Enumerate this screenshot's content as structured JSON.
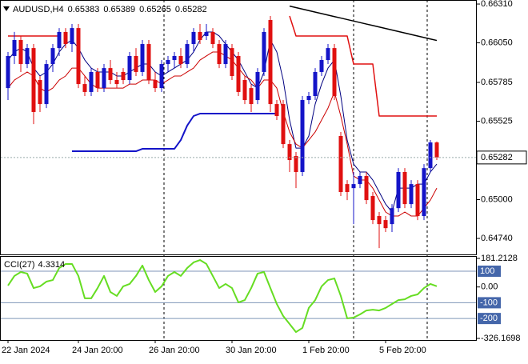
{
  "chart_data": [
    {
      "type": "candlestick",
      "title": "AUDUSD,H4",
      "categories": [
        "22 Jan 2024",
        null,
        null,
        null,
        null,
        null,
        null,
        null,
        null,
        null,
        null,
        "24 Jan 20:00",
        null,
        null,
        null,
        null,
        null,
        null,
        null,
        null,
        null,
        null,
        null,
        "26 Jan 20:00",
        null,
        null,
        null,
        null,
        null,
        null,
        null,
        null,
        null,
        null,
        null,
        "30 Jan 20:00",
        null,
        null,
        null,
        null,
        null,
        null,
        null,
        null,
        null,
        null,
        null,
        "1 Feb 20:00",
        null,
        null,
        null,
        null,
        null,
        null,
        null,
        null,
        null,
        null,
        null,
        "5 Feb 20:00",
        null,
        null,
        null,
        null,
        null,
        null,
        null,
        null
      ],
      "open": [
        0.65747,
        0.65962,
        0.66069,
        0.65908,
        0.66015,
        0.65801,
        0.6564,
        0.65908,
        0.66015,
        0.66123,
        0.66042,
        0.66149,
        0.65774,
        0.65721,
        0.65855,
        0.65747,
        0.65881,
        0.65801,
        0.65855,
        0.65801,
        0.65962,
        0.65855,
        0.66042,
        0.65801,
        0.65747,
        0.65908,
        0.65935,
        0.65962,
        0.65908,
        0.66042,
        0.66123,
        0.66096,
        0.66123,
        0.66042,
        0.65908,
        0.66015,
        0.65962,
        0.65801,
        0.65747,
        0.65667,
        0.65855,
        0.66203,
        0.6564,
        0.6564,
        0.65372,
        0.65292,
        0.65185,
        0.65667,
        0.65694,
        0.65855,
        0.65935,
        0.66015,
        0.65426,
        0.65104,
        0.65077,
        0.65104,
        0.65158,
        0.65024,
        0.6489,
        0.64863,
        0.64836,
        0.64943,
        0.65185,
        0.6497,
        0.65104,
        0.6489,
        0.65211,
        0.65383
      ],
      "high": [
        0.65989,
        0.66123,
        0.66096,
        0.66042,
        0.66042,
        0.65828,
        0.65935,
        0.66042,
        0.66149,
        0.66149,
        0.66176,
        0.66176,
        0.65828,
        0.65881,
        0.65881,
        0.65908,
        0.65935,
        0.65855,
        0.65881,
        0.65989,
        0.66015,
        0.66069,
        0.66069,
        0.65855,
        0.65935,
        0.65962,
        0.65989,
        0.66015,
        0.66069,
        0.66149,
        0.66176,
        0.66176,
        0.66149,
        0.66069,
        0.66069,
        0.66042,
        0.65989,
        0.65828,
        0.65774,
        0.65881,
        0.66149,
        0.6623,
        0.65667,
        0.65667,
        0.65399,
        0.65319,
        0.65694,
        0.65721,
        0.65881,
        0.65962,
        0.66042,
        0.66042,
        0.65453,
        0.65131,
        0.65185,
        0.65185,
        0.65185,
        0.65051,
        0.64917,
        0.6489,
        0.6497,
        0.65211,
        0.65211,
        0.65131,
        0.65131,
        0.65238,
        0.65399,
        0.65389
      ],
      "low": [
        0.65667,
        0.65908,
        0.65855,
        0.65881,
        0.65506,
        0.65587,
        0.65613,
        0.65855,
        0.65962,
        0.66015,
        0.65989,
        0.65747,
        0.65694,
        0.65694,
        0.65721,
        0.65721,
        0.65774,
        0.65747,
        0.65774,
        0.65774,
        0.65828,
        0.65828,
        0.65774,
        0.65721,
        0.65721,
        0.65855,
        0.65881,
        0.65881,
        0.65881,
        0.65989,
        0.66042,
        0.66069,
        0.66015,
        0.65881,
        0.65881,
        0.65801,
        0.65694,
        0.6564,
        0.65587,
        0.6564,
        0.65828,
        0.65587,
        0.65533,
        0.65345,
        0.65185,
        0.65077,
        0.65158,
        0.6564,
        0.65667,
        0.65828,
        0.65908,
        0.65667,
        0.65024,
        0.64997,
        0.64836,
        0.65077,
        0.6497,
        0.64836,
        0.64675,
        0.64783,
        0.64783,
        0.64917,
        0.64943,
        0.64943,
        0.64863,
        0.64863,
        0.65185,
        0.65265
      ],
      "close": [
        0.65962,
        0.66069,
        0.65908,
        0.66015,
        0.65587,
        0.6564,
        0.65908,
        0.66015,
        0.66123,
        0.66042,
        0.66149,
        0.65774,
        0.65721,
        0.65855,
        0.65747,
        0.65881,
        0.65801,
        0.65774,
        0.65801,
        0.65962,
        0.65855,
        0.66042,
        0.65801,
        0.65747,
        0.65908,
        0.65935,
        0.65962,
        0.65908,
        0.66042,
        0.66123,
        0.66069,
        0.66123,
        0.66042,
        0.65908,
        0.66042,
        0.65828,
        0.65721,
        0.65667,
        0.6564,
        0.65855,
        0.66123,
        0.6564,
        0.6556,
        0.65372,
        0.65265,
        0.65185,
        0.65667,
        0.65694,
        0.65855,
        0.65935,
        0.66015,
        0.65694,
        0.65051,
        0.65051,
        0.65104,
        0.65158,
        0.64997,
        0.64863,
        0.64836,
        0.64809,
        0.64943,
        0.65185,
        0.6497,
        0.65104,
        0.6489,
        0.65211,
        0.65383,
        0.65282
      ],
      "up_color": "#1414c8",
      "down_color": "#e01010",
      "ylim": [
        0.64633,
        0.66337
      ],
      "yticks": [
        {
          "value": 0.6631,
          "label": "0.66310"
        },
        {
          "value": 0.6605,
          "label": "0.66050"
        },
        0.65785,
        0.65525,
        {
          "value": 0.65,
          "label": "0.65000"
        },
        {
          "value": 0.6474,
          "label": "0.64740"
        }
      ],
      "grid": false,
      "overlays": [
        {
          "color": "#000000",
          "width": 1.5,
          "values": [
            null,
            null,
            null,
            null,
            null,
            null,
            null,
            null,
            null,
            null,
            null,
            null,
            null,
            null,
            null,
            null,
            null,
            null,
            null,
            null,
            null,
            null,
            null,
            null,
            null,
            null,
            null,
            null,
            null,
            null,
            null,
            null,
            null,
            null,
            null,
            null,
            null,
            null,
            null,
            null,
            null,
            null,
            null,
            null,
            0.66296,
            0.66286,
            0.66276,
            0.66266,
            0.66256,
            0.66246,
            0.66236,
            0.66226,
            0.66216,
            0.66206,
            0.66196,
            0.66186,
            0.66176,
            0.66166,
            0.66156,
            0.66146,
            0.66136,
            0.66126,
            0.66116,
            0.66106,
            0.66096,
            0.66086,
            0.66076,
            0.66066
          ]
        },
        {
          "color": "#e01010",
          "width": 1.5,
          "values": [
            0.66096,
            0.66096,
            0.66096,
            0.66096,
            0.66096,
            0.66096,
            0.66096,
            0.66096,
            0.66096,
            null,
            null,
            null,
            null,
            null,
            null,
            null,
            null,
            null,
            null,
            null,
            null,
            null,
            null,
            null,
            null,
            null,
            null,
            null,
            null,
            null,
            null,
            null,
            null,
            null,
            null,
            null,
            null,
            null,
            null,
            null,
            null,
            null,
            null,
            null,
            0.6623,
            0.66096,
            0.66096,
            0.66096,
            0.66096,
            0.66096,
            0.66096,
            0.66096,
            0.66096,
            0.66096,
            0.65908,
            0.65908,
            0.65908,
            0.65908,
            0.6556,
            0.6556,
            0.6556,
            0.6556,
            0.6556,
            0.6556,
            0.6556,
            0.6556,
            0.6556,
            0.6556
          ]
        },
        {
          "color": "#1414c8",
          "width": 2,
          "values": [
            null,
            null,
            null,
            null,
            null,
            null,
            null,
            null,
            null,
            null,
            0.65324,
            0.65324,
            0.65324,
            0.65324,
            0.65324,
            0.65324,
            0.65324,
            0.65324,
            0.65324,
            0.65324,
            0.65324,
            0.6534,
            0.6534,
            0.6534,
            0.6534,
            0.6534,
            0.6534,
            0.65399,
            0.65496,
            0.6556,
            0.65576,
            0.65576,
            0.65576,
            0.65576,
            0.65576,
            0.65576,
            0.65576,
            0.65576,
            0.65576,
            0.65576,
            0.65576,
            0.65576,
            0.65576,
            null,
            null,
            null,
            null,
            null,
            null,
            null,
            null,
            null,
            null,
            null,
            null,
            null,
            null,
            null,
            null,
            null,
            null,
            null,
            null,
            null,
            null,
            null,
            null,
            null
          ]
        },
        {
          "color": "#000080",
          "width": 1,
          "values": [
            0.65935,
            0.65989,
            0.66015,
            0.65989,
            0.65881,
            0.65828,
            0.65855,
            0.65908,
            0.65989,
            0.66042,
            0.66069,
            0.66015,
            0.65935,
            0.65881,
            0.65855,
            0.65855,
            0.65855,
            0.65828,
            0.65828,
            0.65855,
            0.65881,
            0.65908,
            0.65908,
            0.65855,
            0.65828,
            0.65855,
            0.65881,
            0.65908,
            0.65935,
            0.65989,
            0.66069,
            0.66123,
            0.66123,
            0.66096,
            0.66042,
            0.65989,
            0.65935,
            0.65855,
            0.65774,
            0.65747,
            0.65855,
            0.66069,
            0.65989,
            0.65801,
            0.65533,
            0.65345,
            0.65345,
            0.65426,
            0.6564,
            0.65774,
            0.65881,
            0.65935,
            0.65694,
            0.65399,
            0.65238,
            0.65185,
            0.65185,
            0.65131,
            0.65051,
            0.6497,
            0.64917,
            0.65077,
            0.65077,
            0.65077,
            0.65104,
            0.65104,
            0.65185,
            0.65238
          ]
        },
        {
          "color": "#cc0000",
          "width": 1,
          "values": [
            0.65747,
            0.65801,
            0.65828,
            0.65855,
            0.65828,
            0.65747,
            0.65721,
            0.65747,
            0.65801,
            0.65828,
            0.65881,
            0.65881,
            0.65828,
            0.65774,
            0.65747,
            0.65747,
            0.65747,
            0.65747,
            0.65747,
            0.65774,
            0.65774,
            0.65801,
            0.65801,
            0.65801,
            0.65774,
            0.65801,
            0.65828,
            0.65828,
            0.65855,
            0.65881,
            0.65935,
            0.65962,
            0.65989,
            0.65989,
            0.65962,
            0.65935,
            0.65881,
            0.65828,
            0.65801,
            0.65747,
            0.65801,
            0.65801,
            0.65747,
            0.65587,
            0.65453,
            0.65372,
            0.65345,
            0.65399,
            0.65453,
            0.65533,
            0.65613,
            0.65721,
            0.6556,
            0.65372,
            0.65158,
            0.65131,
            0.65131,
            0.65077,
            0.64997,
            0.64917,
            0.6489,
            0.6489,
            0.64917,
            0.6489,
            0.6489,
            0.64943,
            0.64997,
            0.65077
          ]
        }
      ]
    },
    {
      "type": "line",
      "title": "CCI(27)",
      "color": "#66dd22",
      "values": [
        9,
        70,
        95,
        85,
        -7,
        4,
        34,
        44,
        120,
        146,
        146,
        70,
        -72,
        -72,
        -7,
        70,
        -32,
        -57,
        4,
        19,
        70,
        136,
        44,
        -32,
        4,
        70,
        95,
        70,
        120,
        156,
        171,
        146,
        70,
        -7,
        19,
        -7,
        -98,
        -83,
        -7,
        85,
        95,
        -7,
        -108,
        -184,
        -235,
        -286,
        -260,
        -133,
        -83,
        4,
        44,
        54,
        -57,
        -199,
        -194,
        -174,
        -149,
        -144,
        -149,
        -133,
        -108,
        -83,
        -78,
        -57,
        -47,
        -7,
        19,
        4.3314
      ],
      "ylim": [
        -326.1698,
        181.2128
      ],
      "yticks": [
        181.2128,
        {
          "value": 0,
          "label": "0.00"
        },
        -326.1698
      ],
      "levels": [
        100,
        -100,
        -200
      ]
    }
  ]
}
